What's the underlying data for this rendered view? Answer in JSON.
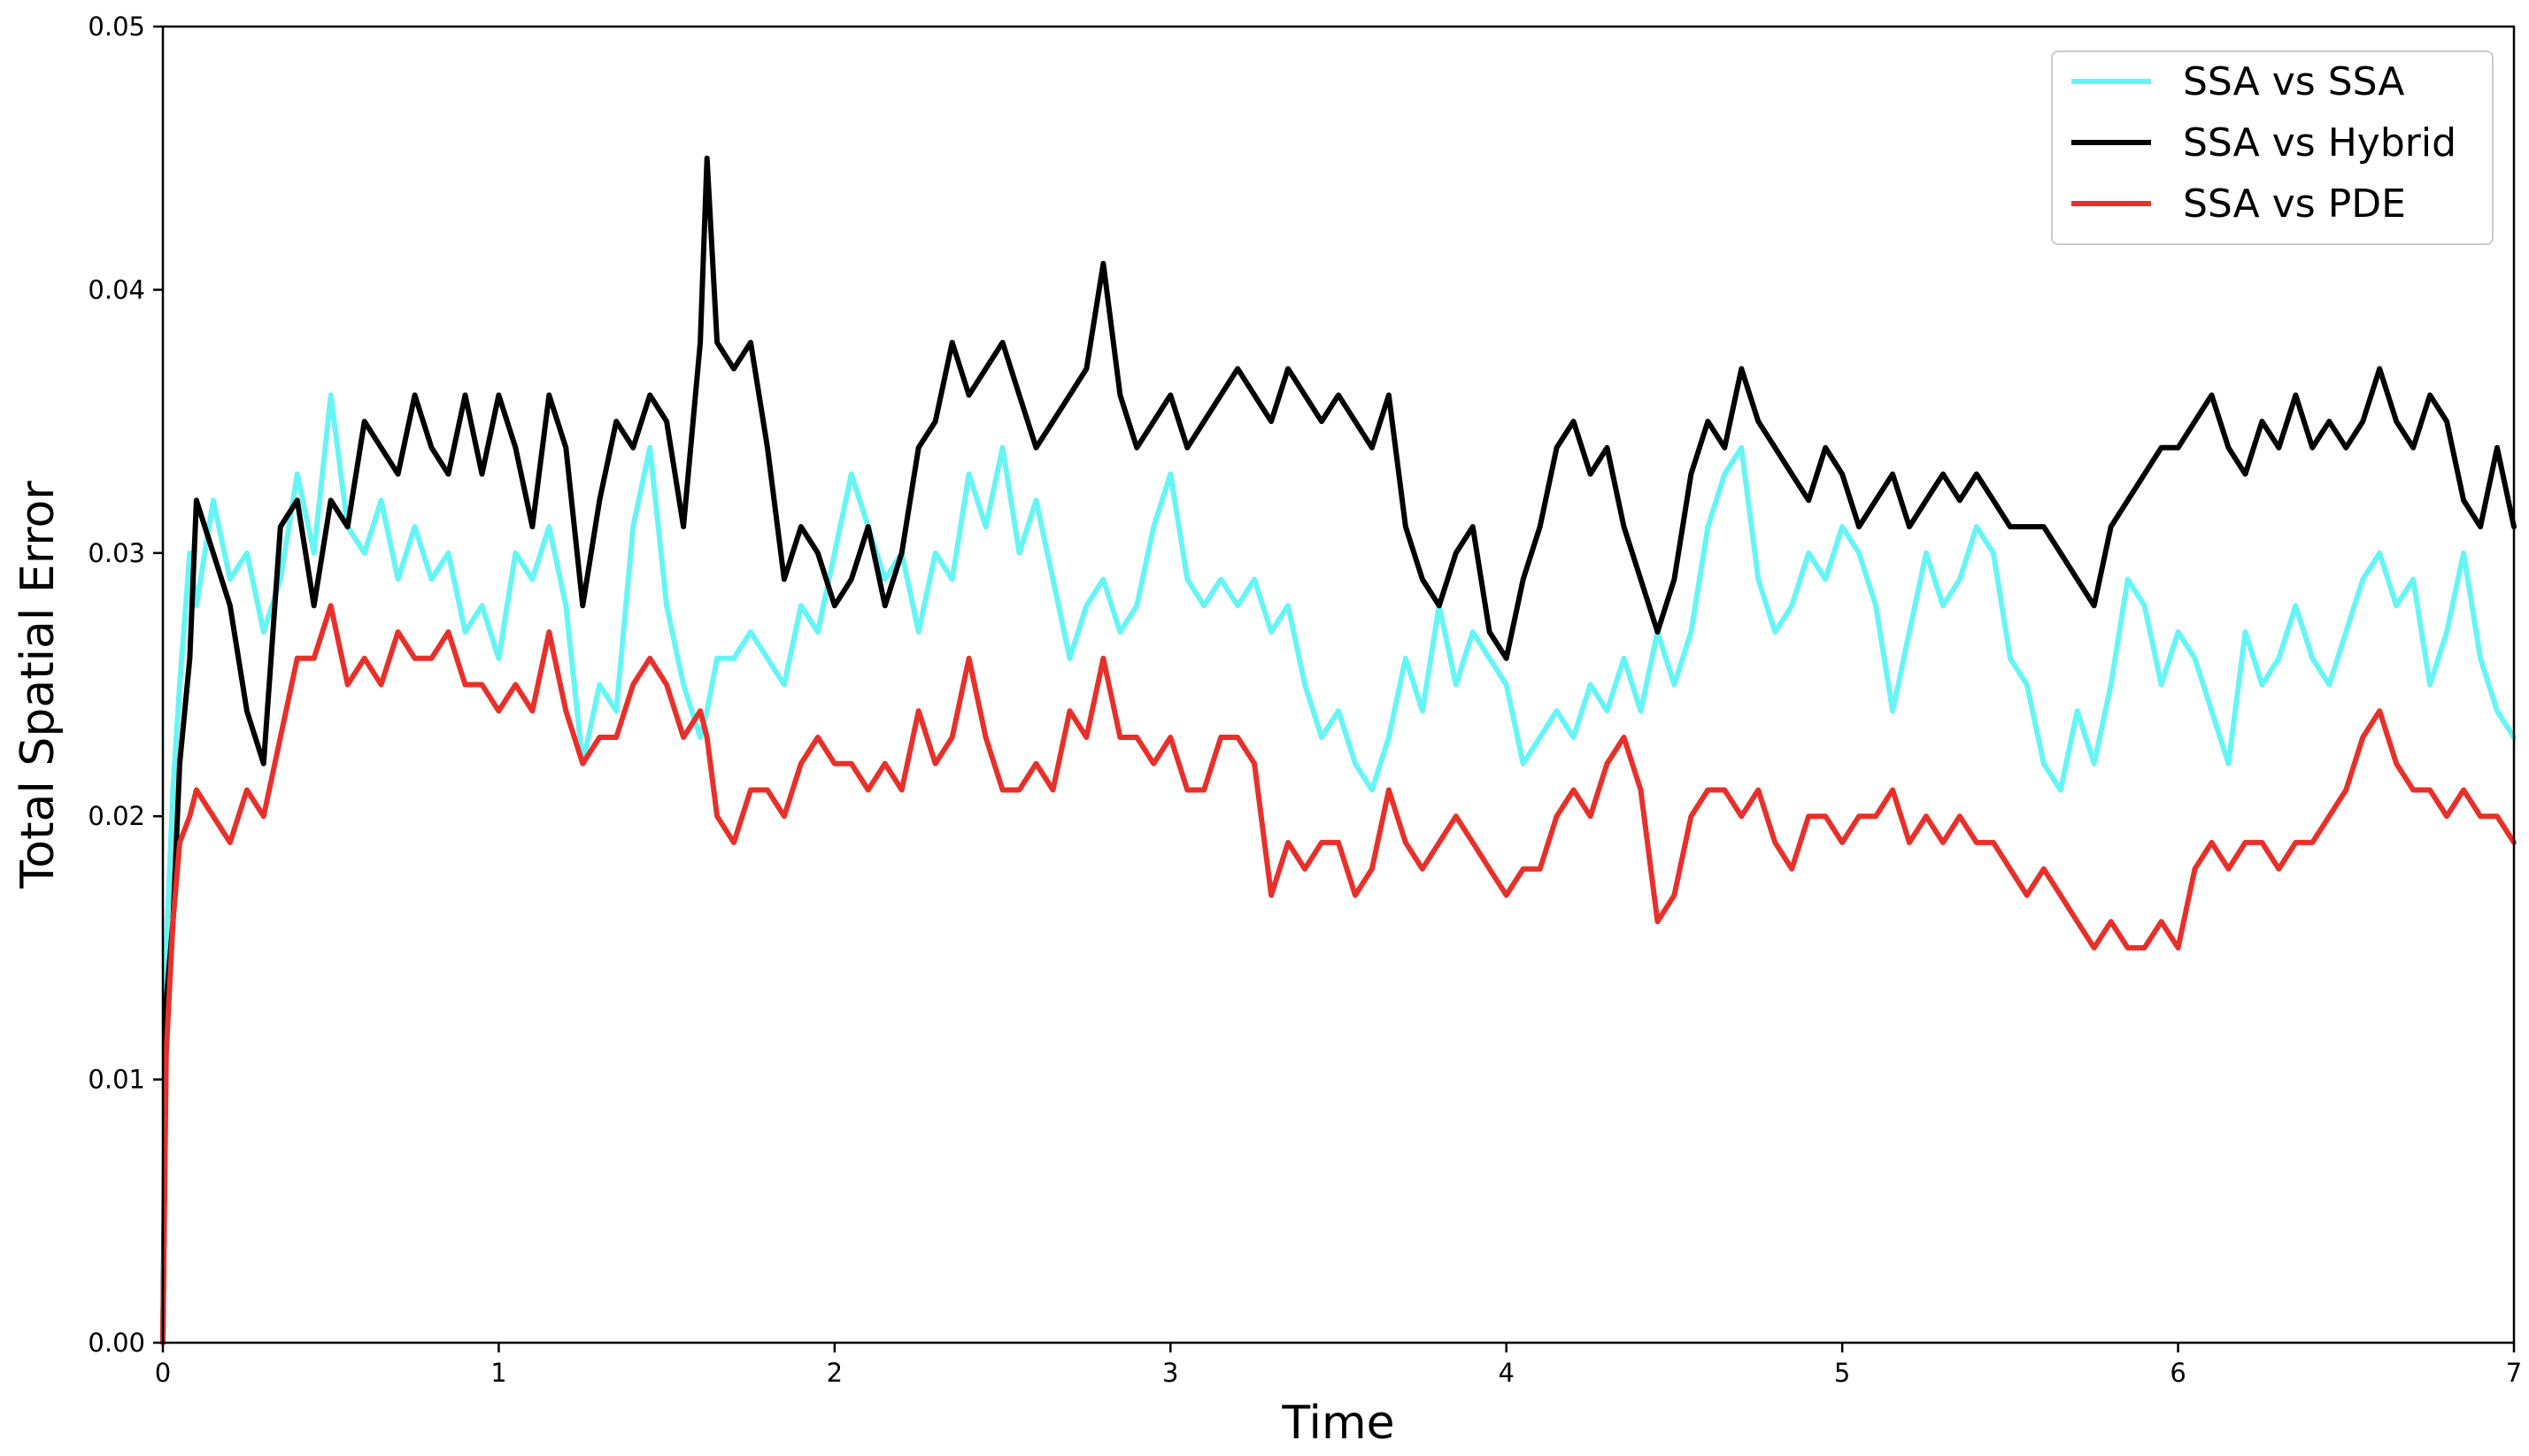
{
  "chart_data": {
    "type": "line",
    "title": "",
    "xlabel": "Time",
    "ylabel": "Total Spatial Error",
    "xlim": [
      0,
      7
    ],
    "ylim": [
      0,
      0.05
    ],
    "x_ticks": [
      "0",
      "1",
      "2",
      "3",
      "4",
      "5",
      "6",
      "7"
    ],
    "y_ticks": [
      "0.00",
      "0.01",
      "0.02",
      "0.03",
      "0.04",
      "0.05"
    ],
    "grid": false,
    "legend_position": "top-right",
    "x": [
      0,
      0.01,
      0.03,
      0.05,
      0.08,
      0.1,
      0.15,
      0.2,
      0.25,
      0.3,
      0.35,
      0.4,
      0.45,
      0.5,
      0.55,
      0.6,
      0.65,
      0.7,
      0.75,
      0.8,
      0.85,
      0.9,
      0.95,
      1.0,
      1.05,
      1.1,
      1.15,
      1.2,
      1.25,
      1.3,
      1.35,
      1.4,
      1.45,
      1.5,
      1.55,
      1.6,
      1.62,
      1.65,
      1.7,
      1.75,
      1.8,
      1.85,
      1.9,
      1.95,
      2.0,
      2.05,
      2.1,
      2.15,
      2.2,
      2.25,
      2.3,
      2.35,
      2.4,
      2.45,
      2.5,
      2.55,
      2.6,
      2.65,
      2.7,
      2.75,
      2.8,
      2.85,
      2.9,
      2.95,
      3.0,
      3.05,
      3.1,
      3.15,
      3.2,
      3.25,
      3.3,
      3.35,
      3.4,
      3.45,
      3.5,
      3.55,
      3.6,
      3.65,
      3.7,
      3.75,
      3.8,
      3.85,
      3.9,
      3.95,
      4.0,
      4.05,
      4.1,
      4.15,
      4.2,
      4.25,
      4.3,
      4.35,
      4.4,
      4.45,
      4.5,
      4.55,
      4.6,
      4.65,
      4.7,
      4.75,
      4.8,
      4.85,
      4.9,
      4.95,
      5.0,
      5.05,
      5.1,
      5.15,
      5.2,
      5.25,
      5.3,
      5.35,
      5.4,
      5.45,
      5.5,
      5.55,
      5.6,
      5.65,
      5.7,
      5.75,
      5.8,
      5.85,
      5.9,
      5.95,
      6.0,
      6.05,
      6.1,
      6.15,
      6.2,
      6.25,
      6.3,
      6.35,
      6.4,
      6.45,
      6.5,
      6.55,
      6.6,
      6.65,
      6.7,
      6.75,
      6.8,
      6.85,
      6.9,
      6.95,
      7.0
    ],
    "series": [
      {
        "name": "SSA vs SSA",
        "color": "#66f5f5",
        "values": [
          0.0,
          0.015,
          0.021,
          0.025,
          0.03,
          0.028,
          0.032,
          0.029,
          0.03,
          0.027,
          0.029,
          0.033,
          0.03,
          0.036,
          0.031,
          0.03,
          0.032,
          0.029,
          0.031,
          0.029,
          0.03,
          0.027,
          0.028,
          0.026,
          0.03,
          0.029,
          0.031,
          0.028,
          0.022,
          0.025,
          0.024,
          0.031,
          0.034,
          0.028,
          0.025,
          0.023,
          0.024,
          0.026,
          0.026,
          0.027,
          0.026,
          0.025,
          0.028,
          0.027,
          0.03,
          0.033,
          0.031,
          0.029,
          0.03,
          0.027,
          0.03,
          0.029,
          0.033,
          0.031,
          0.034,
          0.03,
          0.032,
          0.029,
          0.026,
          0.028,
          0.029,
          0.027,
          0.028,
          0.031,
          0.033,
          0.029,
          0.028,
          0.029,
          0.028,
          0.029,
          0.027,
          0.028,
          0.025,
          0.023,
          0.024,
          0.022,
          0.021,
          0.023,
          0.026,
          0.024,
          0.028,
          0.025,
          0.027,
          0.026,
          0.025,
          0.022,
          0.023,
          0.024,
          0.023,
          0.025,
          0.024,
          0.026,
          0.024,
          0.027,
          0.025,
          0.027,
          0.031,
          0.033,
          0.034,
          0.029,
          0.027,
          0.028,
          0.03,
          0.029,
          0.031,
          0.03,
          0.028,
          0.024,
          0.027,
          0.03,
          0.028,
          0.029,
          0.031,
          0.03,
          0.026,
          0.025,
          0.022,
          0.021,
          0.024,
          0.022,
          0.025,
          0.029,
          0.028,
          0.025,
          0.027,
          0.026,
          0.024,
          0.022,
          0.027,
          0.025,
          0.026,
          0.028,
          0.026,
          0.025,
          0.027,
          0.029,
          0.03,
          0.028,
          0.029,
          0.025,
          0.027,
          0.03,
          0.026,
          0.024,
          0.023
        ]
      },
      {
        "name": "SSA vs Hybrid",
        "color": "#000000",
        "values": [
          0.0,
          0.013,
          0.016,
          0.022,
          0.026,
          0.032,
          0.03,
          0.028,
          0.024,
          0.022,
          0.031,
          0.032,
          0.028,
          0.032,
          0.031,
          0.035,
          0.034,
          0.033,
          0.036,
          0.034,
          0.033,
          0.036,
          0.033,
          0.036,
          0.034,
          0.031,
          0.036,
          0.034,
          0.028,
          0.032,
          0.035,
          0.034,
          0.036,
          0.035,
          0.031,
          0.038,
          0.045,
          0.038,
          0.037,
          0.038,
          0.034,
          0.029,
          0.031,
          0.03,
          0.028,
          0.029,
          0.031,
          0.028,
          0.03,
          0.034,
          0.035,
          0.038,
          0.036,
          0.037,
          0.038,
          0.036,
          0.034,
          0.035,
          0.036,
          0.037,
          0.041,
          0.036,
          0.034,
          0.035,
          0.036,
          0.034,
          0.035,
          0.036,
          0.037,
          0.036,
          0.035,
          0.037,
          0.036,
          0.035,
          0.036,
          0.035,
          0.034,
          0.036,
          0.031,
          0.029,
          0.028,
          0.03,
          0.031,
          0.027,
          0.026,
          0.029,
          0.031,
          0.034,
          0.035,
          0.033,
          0.034,
          0.031,
          0.029,
          0.027,
          0.029,
          0.033,
          0.035,
          0.034,
          0.037,
          0.035,
          0.034,
          0.033,
          0.032,
          0.034,
          0.033,
          0.031,
          0.032,
          0.033,
          0.031,
          0.032,
          0.033,
          0.032,
          0.033,
          0.032,
          0.031,
          0.031,
          0.031,
          0.03,
          0.029,
          0.028,
          0.031,
          0.032,
          0.033,
          0.034,
          0.034,
          0.035,
          0.036,
          0.034,
          0.033,
          0.035,
          0.034,
          0.036,
          0.034,
          0.035,
          0.034,
          0.035,
          0.037,
          0.035,
          0.034,
          0.036,
          0.035,
          0.032,
          0.031,
          0.034,
          0.031
        ]
      },
      {
        "name": "SSA vs PDE",
        "color": "#e8302a",
        "values": [
          0.0,
          0.011,
          0.016,
          0.019,
          0.02,
          0.021,
          0.02,
          0.019,
          0.021,
          0.02,
          0.023,
          0.026,
          0.026,
          0.028,
          0.025,
          0.026,
          0.025,
          0.027,
          0.026,
          0.026,
          0.027,
          0.025,
          0.025,
          0.024,
          0.025,
          0.024,
          0.027,
          0.024,
          0.022,
          0.023,
          0.023,
          0.025,
          0.026,
          0.025,
          0.023,
          0.024,
          0.023,
          0.02,
          0.019,
          0.021,
          0.021,
          0.02,
          0.022,
          0.023,
          0.022,
          0.022,
          0.021,
          0.022,
          0.021,
          0.024,
          0.022,
          0.023,
          0.026,
          0.023,
          0.021,
          0.021,
          0.022,
          0.021,
          0.024,
          0.023,
          0.026,
          0.023,
          0.023,
          0.022,
          0.023,
          0.021,
          0.021,
          0.023,
          0.023,
          0.022,
          0.017,
          0.019,
          0.018,
          0.019,
          0.019,
          0.017,
          0.018,
          0.021,
          0.019,
          0.018,
          0.019,
          0.02,
          0.019,
          0.018,
          0.017,
          0.018,
          0.018,
          0.02,
          0.021,
          0.02,
          0.022,
          0.023,
          0.021,
          0.016,
          0.017,
          0.02,
          0.021,
          0.021,
          0.02,
          0.021,
          0.019,
          0.018,
          0.02,
          0.02,
          0.019,
          0.02,
          0.02,
          0.021,
          0.019,
          0.02,
          0.019,
          0.02,
          0.019,
          0.019,
          0.018,
          0.017,
          0.018,
          0.017,
          0.016,
          0.015,
          0.016,
          0.015,
          0.015,
          0.016,
          0.015,
          0.018,
          0.019,
          0.018,
          0.019,
          0.019,
          0.018,
          0.019,
          0.019,
          0.02,
          0.021,
          0.023,
          0.024,
          0.022,
          0.021,
          0.021,
          0.02,
          0.021,
          0.02,
          0.02,
          0.019
        ]
      }
    ]
  }
}
